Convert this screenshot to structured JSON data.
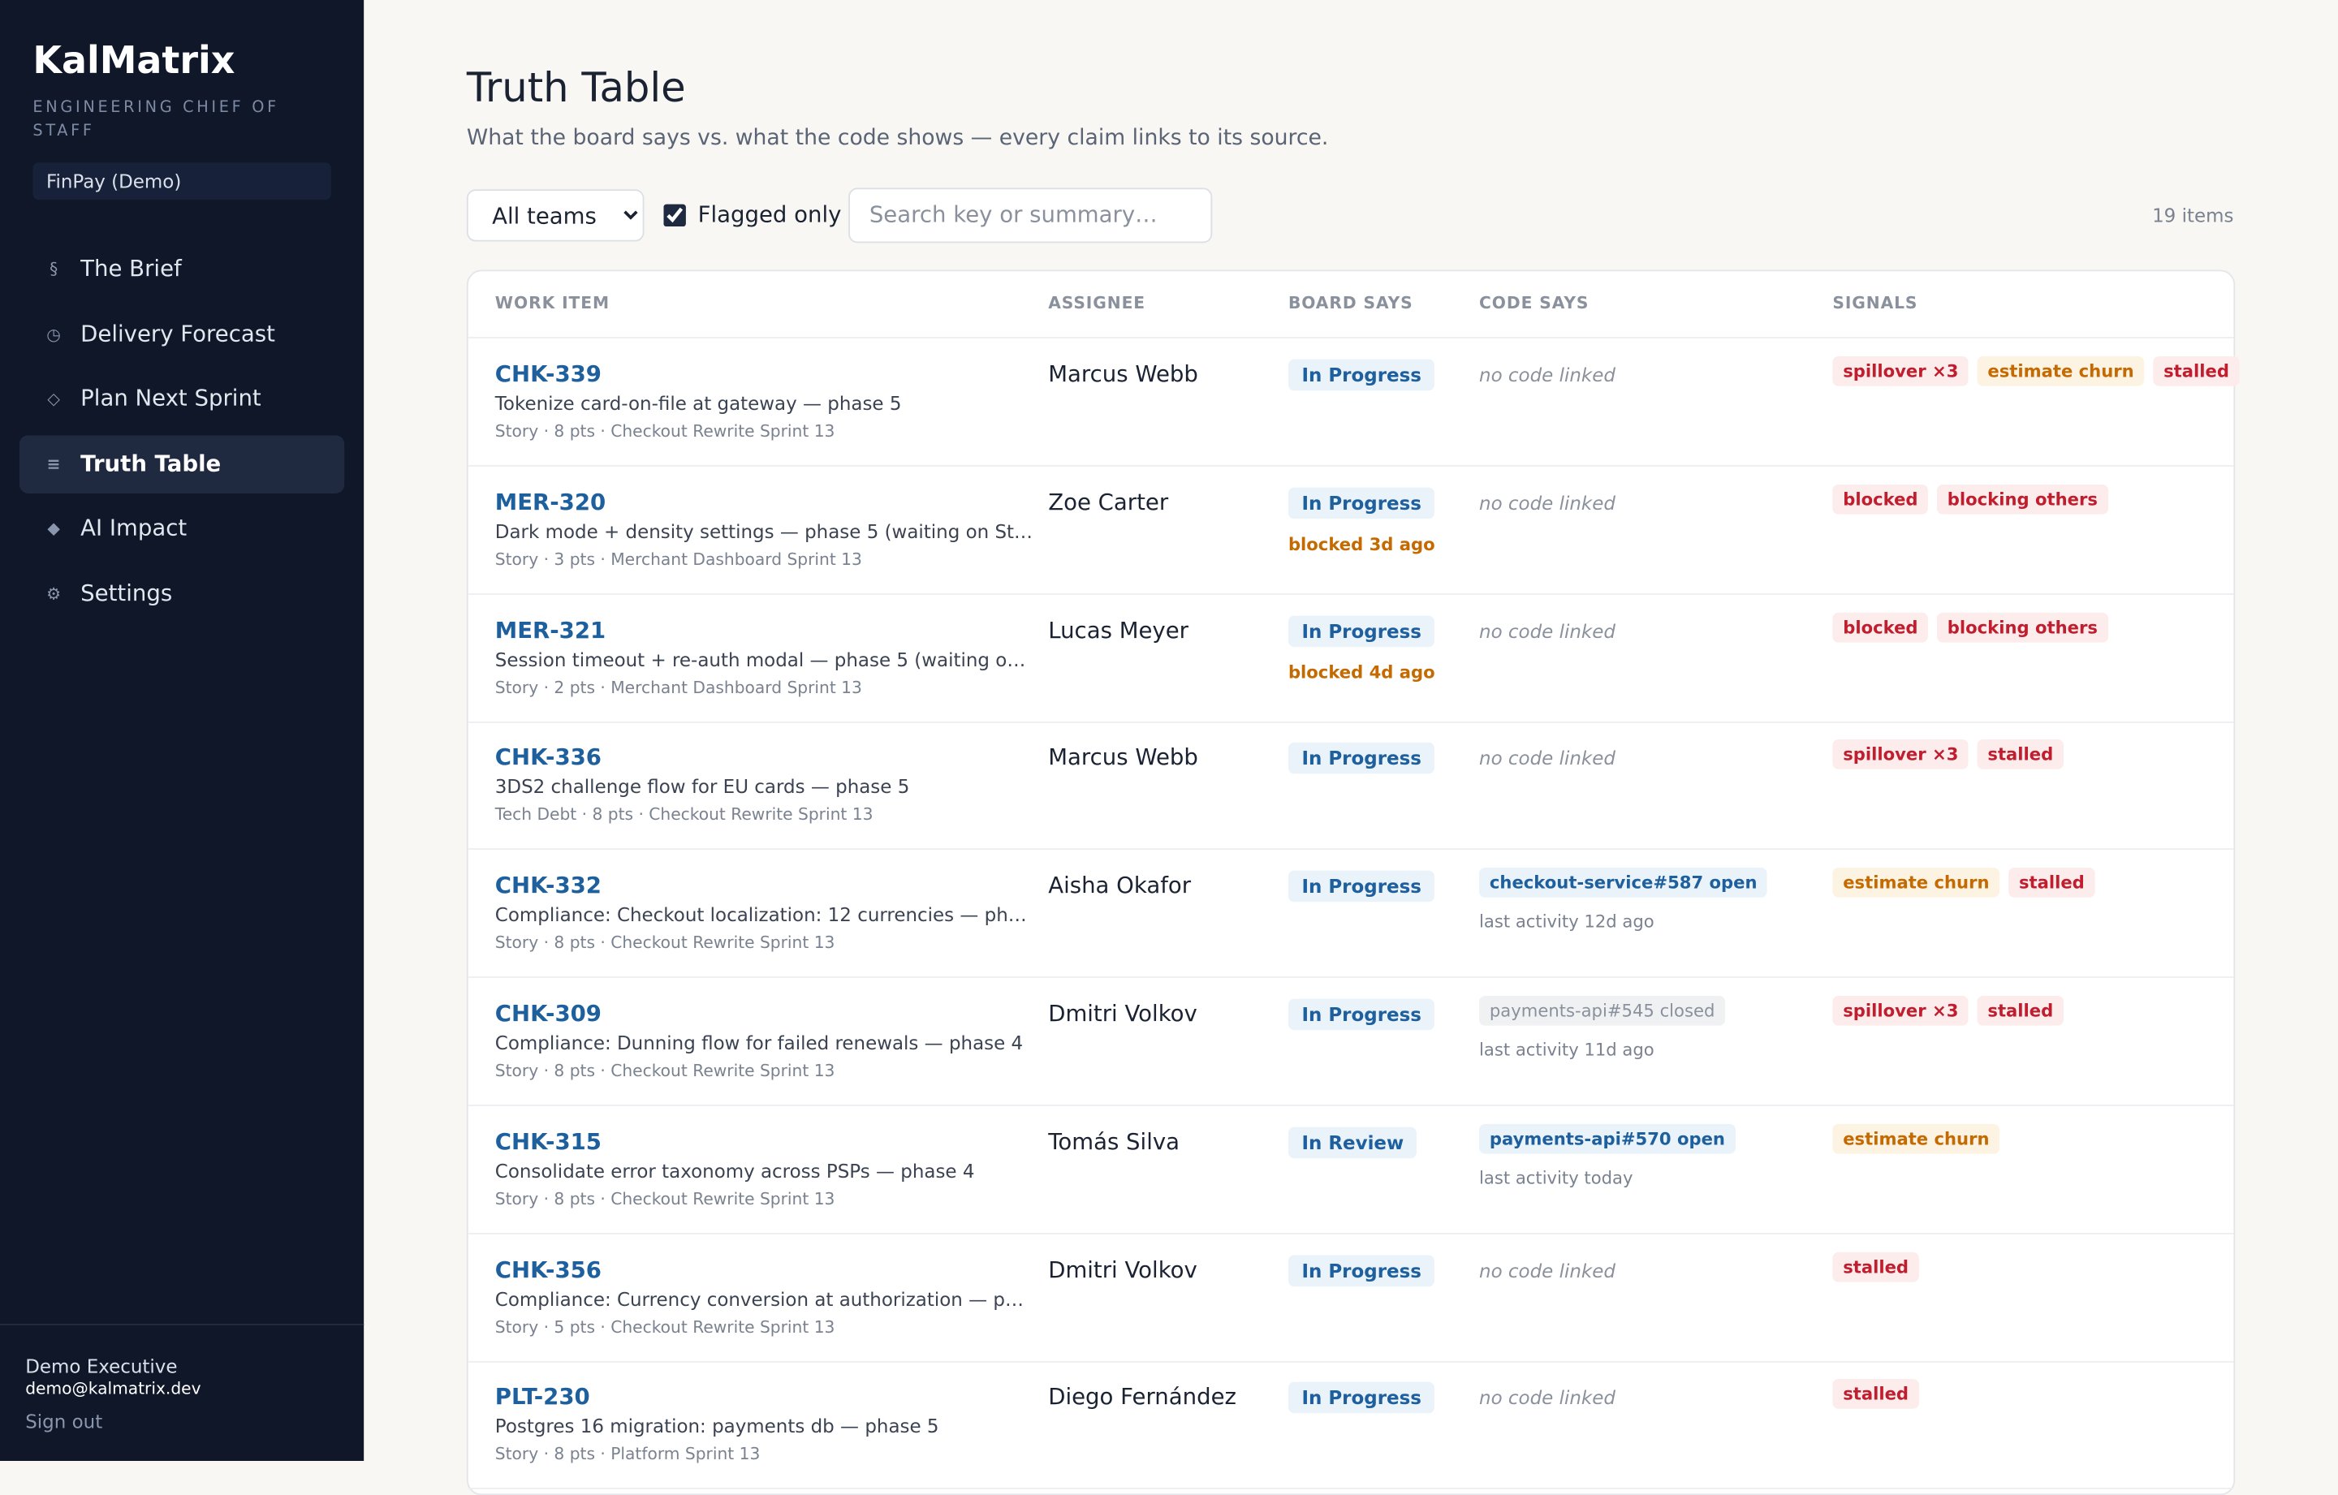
{
  "sidebar": {
    "brand": "KalMatrix",
    "tagline": "ENGINEERING CHIEF OF STAFF",
    "org": "FinPay (Demo)",
    "nav": [
      {
        "icon": "§",
        "label": "The Brief"
      },
      {
        "icon": "◷",
        "label": "Delivery Forecast"
      },
      {
        "icon": "◇",
        "label": "Plan Next Sprint"
      },
      {
        "icon": "≡",
        "label": "Truth Table",
        "active": true
      },
      {
        "icon": "◆",
        "label": "AI Impact"
      },
      {
        "icon": "⚙",
        "label": "Settings"
      }
    ],
    "user": {
      "name": "Demo Executive",
      "email": "demo@kalmatrix.dev",
      "sign_out": "Sign out"
    }
  },
  "header": {
    "title": "Truth Table",
    "subtitle": "What the board says vs. what the code shows — every claim links to its source."
  },
  "filters": {
    "team": "All teams",
    "flagged": "Flagged only",
    "flagged_checked": true,
    "search_placeholder": "Search key or summary…",
    "count": "19 items"
  },
  "table": {
    "columns": [
      "WORK ITEM",
      "ASSIGNEE",
      "BOARD SAYS",
      "CODE SAYS",
      "SIGNALS"
    ],
    "rows": [
      {
        "key": "CHK-339",
        "summary": "Tokenize card-on-file at gateway — phase 5",
        "meta": "Story · 8 pts · Checkout Rewrite Sprint 13",
        "assignee": "Marcus Webb",
        "board": "In Progress",
        "code": "no code linked",
        "signals": [
          {
            "label": "spillover ×3",
            "tone": "red"
          },
          {
            "label": "estimate churn",
            "tone": "amber"
          },
          {
            "label": "stalled",
            "tone": "red"
          }
        ]
      },
      {
        "key": "MER-320",
        "summary": "Dark mode + density settings — phase 5 (waiting on St…",
        "meta": "Story · 3 pts · Merchant Dashboard Sprint 13",
        "assignee": "Zoe Carter",
        "board": "In Progress",
        "board_note": "blocked 3d ago",
        "code": "no code linked",
        "signals": [
          {
            "label": "blocked",
            "tone": "red"
          },
          {
            "label": "blocking others",
            "tone": "red"
          }
        ]
      },
      {
        "key": "MER-321",
        "summary": "Session timeout + re-auth modal — phase 5 (waiting o…",
        "meta": "Story · 2 pts · Merchant Dashboard Sprint 13",
        "assignee": "Lucas Meyer",
        "board": "In Progress",
        "board_note": "blocked 4d ago",
        "code": "no code linked",
        "signals": [
          {
            "label": "blocked",
            "tone": "red"
          },
          {
            "label": "blocking others",
            "tone": "red"
          }
        ]
      },
      {
        "key": "CHK-336",
        "summary": "3DS2 challenge flow for EU cards — phase 5",
        "meta": "Tech Debt · 8 pts · Checkout Rewrite Sprint 13",
        "assignee": "Marcus Webb",
        "board": "In Progress",
        "code": "no code linked",
        "signals": [
          {
            "label": "spillover ×3",
            "tone": "red"
          },
          {
            "label": "stalled",
            "tone": "red"
          }
        ]
      },
      {
        "key": "CHK-332",
        "summary": "Compliance: Checkout localization: 12 currencies — ph…",
        "meta": "Story · 8 pts · Checkout Rewrite Sprint 13",
        "assignee": "Aisha Okafor",
        "board": "In Progress",
        "pr": "checkout-service#587 open",
        "pr_state": "open",
        "activity": "last activity 12d ago",
        "signals": [
          {
            "label": "estimate churn",
            "tone": "amber"
          },
          {
            "label": "stalled",
            "tone": "red"
          }
        ]
      },
      {
        "key": "CHK-309",
        "summary": "Compliance: Dunning flow for failed renewals — phase 4",
        "meta": "Story · 8 pts · Checkout Rewrite Sprint 13",
        "assignee": "Dmitri Volkov",
        "board": "In Progress",
        "pr": "payments-api#545 closed",
        "pr_state": "closed",
        "activity": "last activity 11d ago",
        "signals": [
          {
            "label": "spillover ×3",
            "tone": "red"
          },
          {
            "label": "stalled",
            "tone": "red"
          }
        ]
      },
      {
        "key": "CHK-315",
        "summary": "Consolidate error taxonomy across PSPs — phase 4",
        "meta": "Story · 8 pts · Checkout Rewrite Sprint 13",
        "assignee": "Tomás Silva",
        "board": "In Review",
        "pr": "payments-api#570 open",
        "pr_state": "open",
        "activity": "last activity today",
        "signals": [
          {
            "label": "estimate churn",
            "tone": "amber"
          }
        ]
      },
      {
        "key": "CHK-356",
        "summary": "Compliance: Currency conversion at authorization — p…",
        "meta": "Story · 5 pts · Checkout Rewrite Sprint 13",
        "assignee": "Dmitri Volkov",
        "board": "In Progress",
        "code": "no code linked",
        "signals": [
          {
            "label": "stalled",
            "tone": "red"
          }
        ]
      },
      {
        "key": "PLT-230",
        "summary": "Postgres 16 migration: payments db — phase 5",
        "meta": "Story · 8 pts · Platform Sprint 13",
        "assignee": "Diego Fernández",
        "board": "In Progress",
        "code": "no code linked",
        "signals": [
          {
            "label": "stalled",
            "tone": "red"
          }
        ]
      }
    ]
  }
}
